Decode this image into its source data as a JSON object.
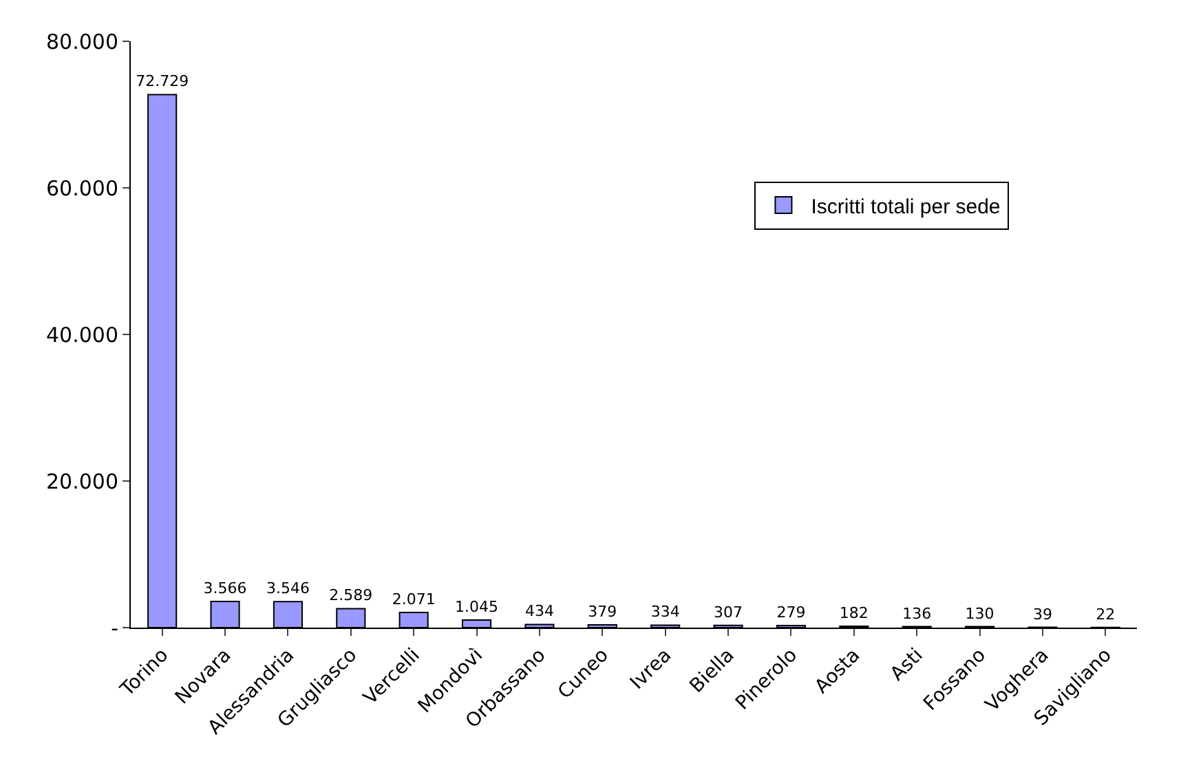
{
  "chart_data": {
    "type": "bar",
    "categories": [
      "Torino",
      "Novara",
      "Alessandria",
      "Grugliasco",
      "Vercelli",
      "Mondovì",
      "Orbassano",
      "Cuneo",
      "Ivrea",
      "Biella",
      "Pinerolo",
      "Aosta",
      "Asti",
      "Fossano",
      "Voghera",
      "Savigliano"
    ],
    "series": [
      {
        "name": "Iscritti totali per sede",
        "color": "#9999ff",
        "values": [
          72729,
          3566,
          3546,
          2589,
          2071,
          1045,
          434,
          379,
          334,
          307,
          279,
          182,
          136,
          130,
          39,
          22
        ],
        "value_labels": [
          "72.729",
          "3.566",
          "3.546",
          "2.589",
          "2.071",
          "1.045",
          "434",
          "379",
          "334",
          "307",
          "279",
          "182",
          "136",
          "130",
          "39",
          "22"
        ]
      }
    ],
    "ylim": [
      0,
      80000
    ],
    "yticks": [
      {
        "value": 0,
        "label": "-"
      },
      {
        "value": 20000,
        "label": "20.000"
      },
      {
        "value": 40000,
        "label": "40.000"
      },
      {
        "value": 60000,
        "label": "60.000"
      },
      {
        "value": 80000,
        "label": "80.000"
      }
    ],
    "legend": "right"
  }
}
